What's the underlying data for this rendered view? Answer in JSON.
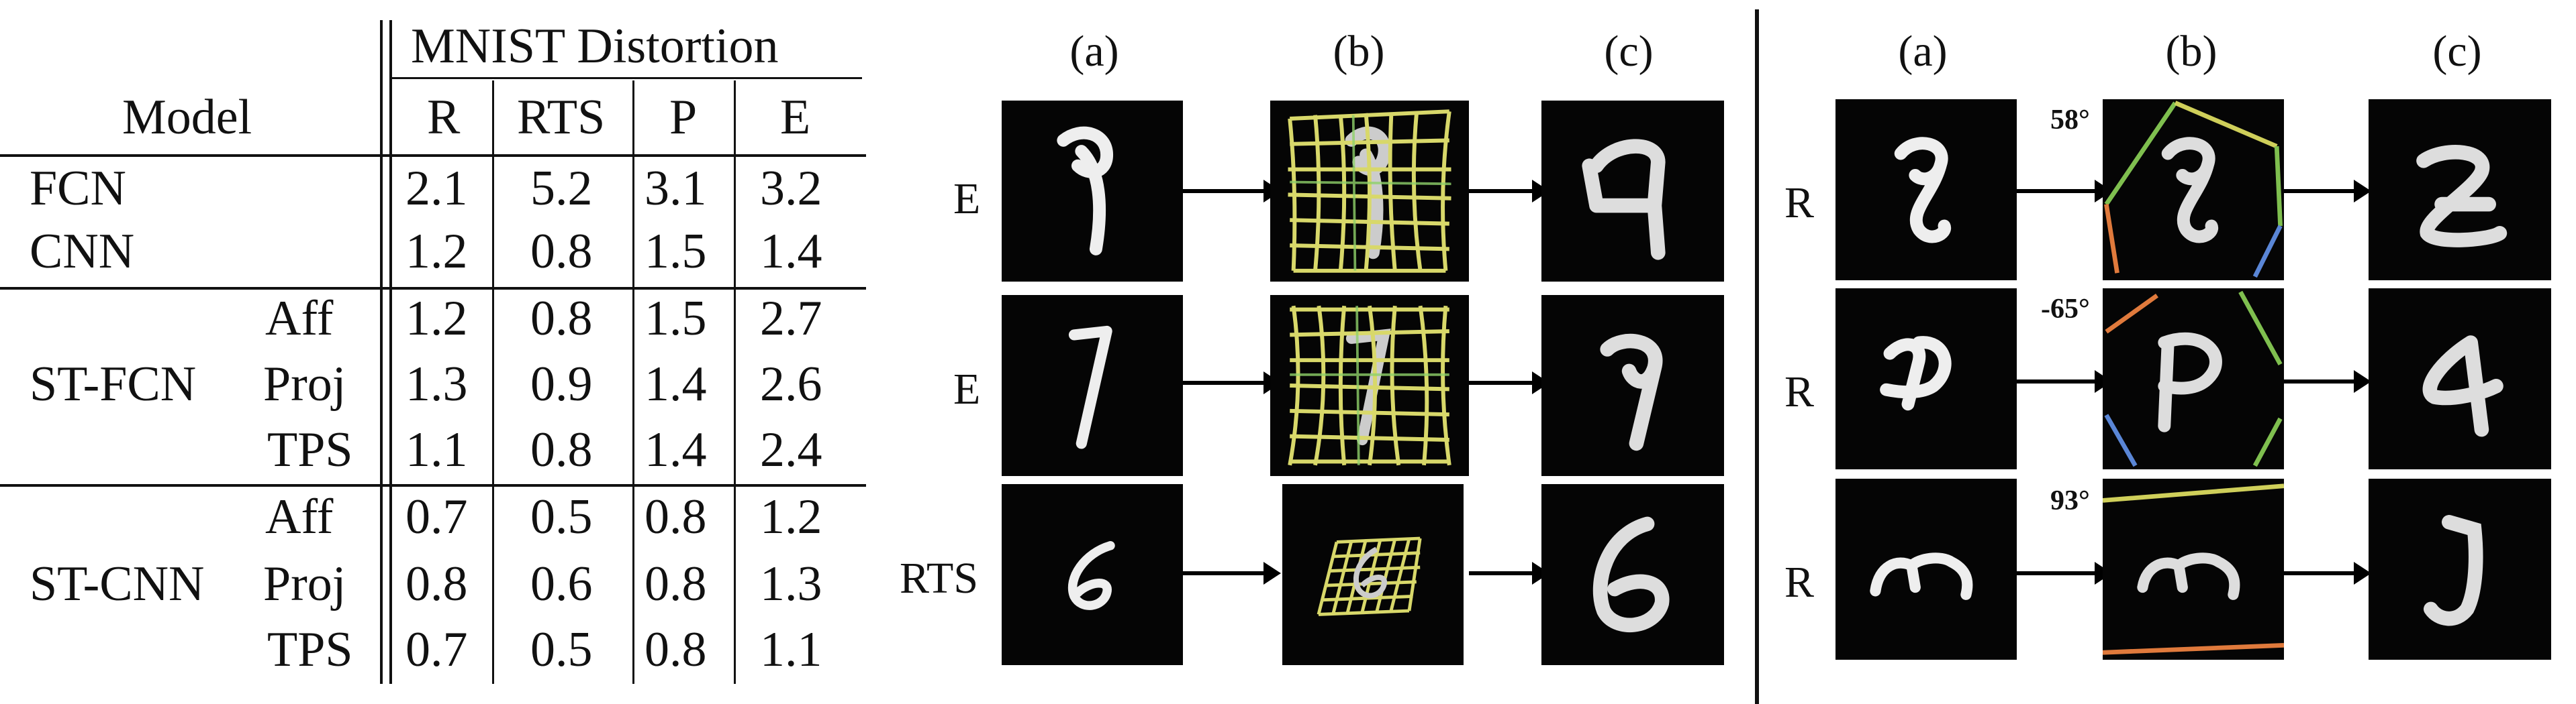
{
  "table": {
    "group_header": "MNIST Distortion",
    "model_header": "Model",
    "columns": [
      "R",
      "RTS",
      "P",
      "E"
    ],
    "rows": [
      {
        "model": "FCN",
        "variant": "",
        "values": [
          "2.1",
          "5.2",
          "3.1",
          "3.2"
        ]
      },
      {
        "model": "CNN",
        "variant": "",
        "values": [
          "1.2",
          "0.8",
          "1.5",
          "1.4"
        ]
      },
      {
        "model": "",
        "variant": "Aff",
        "values": [
          "1.2",
          "0.8",
          "1.5",
          "2.7"
        ]
      },
      {
        "model": "ST-FCN",
        "variant": "Proj",
        "values": [
          "1.3",
          "0.9",
          "1.4",
          "2.6"
        ]
      },
      {
        "model": "",
        "variant": "TPS",
        "values": [
          "1.1",
          "0.8",
          "1.4",
          "2.4"
        ]
      },
      {
        "model": "",
        "variant": "Aff",
        "values": [
          "0.7",
          "0.5",
          "0.8",
          "1.2"
        ]
      },
      {
        "model": "ST-CNN",
        "variant": "Proj",
        "values": [
          "0.8",
          "0.6",
          "0.8",
          "1.3"
        ]
      },
      {
        "model": "",
        "variant": "TPS",
        "values": [
          "0.7",
          "0.5",
          "0.8",
          "1.1"
        ]
      }
    ]
  },
  "left_panel": {
    "column_labels": [
      "(a)",
      "(b)",
      "(c)"
    ],
    "rows": [
      {
        "label": "E"
      },
      {
        "label": "E"
      },
      {
        "label": "RTS"
      }
    ]
  },
  "right_panel": {
    "column_labels": [
      "(a)",
      "(b)",
      "(c)"
    ],
    "rows": [
      {
        "label": "R",
        "angle": "58°"
      },
      {
        "label": "R",
        "angle": "-65°"
      },
      {
        "label": "R",
        "angle": "93°"
      }
    ]
  },
  "colors": {
    "grid_yellow": "#d8d86a",
    "grid_green": "#8fd16a",
    "bound_green": "#7fbf4f",
    "bound_orange": "#e07a3c",
    "bound_blue": "#5a86d6",
    "bound_yellow": "#cfcf5a"
  }
}
